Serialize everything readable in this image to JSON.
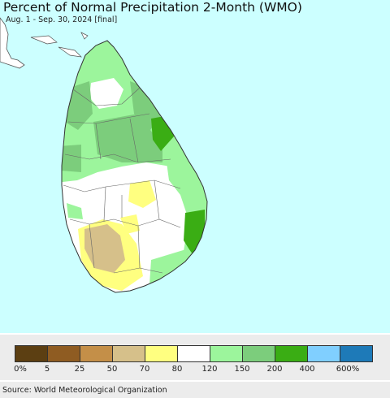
{
  "title": "Percent of Normal Precipitation 2-Month (WMO)",
  "subtitle": "Aug. 1 - Sep. 30, 2024 [final]",
  "source": "Source: World Meteorological Organization",
  "colors": {
    "ocean": "#ccffff",
    "border": "#555555"
  },
  "legend": {
    "colors": [
      "#5c3f12",
      "#8f5c22",
      "#c48f48",
      "#d6c08a",
      "#ffff80",
      "#ffffff",
      "#9cf59c",
      "#7ccd7c",
      "#3aad14",
      "#80cfff",
      "#1e7ab8"
    ],
    "labels": [
      "0%",
      "5",
      "25",
      "50",
      "70",
      "80",
      "120",
      "150",
      "200",
      "400",
      "600%"
    ]
  }
}
